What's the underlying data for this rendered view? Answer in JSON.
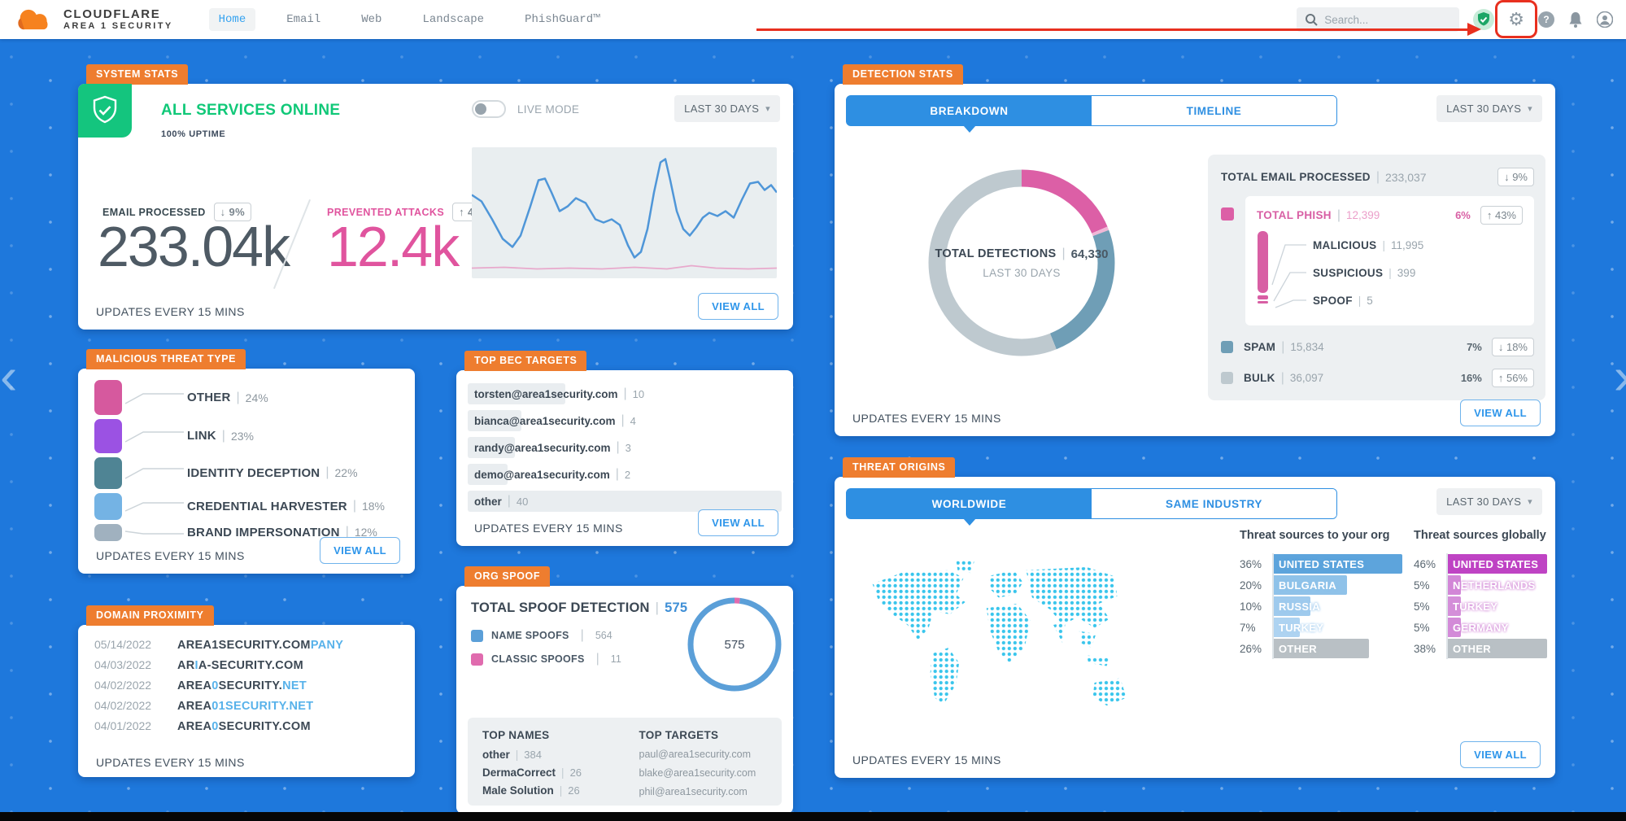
{
  "colors": {
    "background_blue": "#1e78dc",
    "tag_orange": "#ee7d2f",
    "accent_blue": "#2e8fe2",
    "status_green": "#10c878",
    "pink": "#dc5fa6",
    "steel_blue": "#6f9eb6",
    "annotation_red": "#e8301f",
    "map_dot_cyan": "#38c5ec",
    "domain_highlight": "#58b2ea"
  },
  "glyphs": {
    "chevron_down": "▾",
    "gear": "⚙",
    "question_mark": "?",
    "page_prev": "‹",
    "page_next": "›"
  },
  "header": {
    "brand": "CLOUDFLARE",
    "brand_sub": "AREA 1 SECURITY",
    "nav": [
      {
        "label": "Home",
        "active": true
      },
      {
        "label": "Email",
        "active": false
      },
      {
        "label": "Web",
        "active": false
      },
      {
        "label": "Landscape",
        "active": false
      },
      {
        "label": "PhishGuard™",
        "active": false
      }
    ],
    "search_placeholder": "Search..."
  },
  "system_stats": {
    "tag": "SYSTEM STATS",
    "status": "ALL SERVICES ONLINE",
    "uptime": "100% UPTIME",
    "live_mode_label": "LIVE MODE",
    "range": "LAST 30 DAYS",
    "email_processed": {
      "label": "EMAIL PROCESSED",
      "delta": "↓ 9%",
      "value": "233.04k"
    },
    "prevented_attacks": {
      "label": "PREVENTED ATTACKS",
      "delta": "↑ 43%",
      "value": "12.4k"
    },
    "updates": "UPDATES EVERY 15 MINS",
    "view_all": "VIEW ALL"
  },
  "malicious_threat_type": {
    "tag": "MALICIOUS THREAT TYPE",
    "items": [
      {
        "label": "OTHER",
        "pct": "24%",
        "value": 24,
        "color": "#d6599e"
      },
      {
        "label": "LINK",
        "pct": "23%",
        "value": 23,
        "color": "#9b52e3"
      },
      {
        "label": "IDENTITY DECEPTION",
        "pct": "22%",
        "value": 22,
        "color": "#4f8494"
      },
      {
        "label": "CREDENTIAL HARVESTER",
        "pct": "18%",
        "value": 18,
        "color": "#74b3e4"
      },
      {
        "label": "BRAND IMPERSONATION",
        "pct": "12%",
        "value": 12,
        "color": "#a0b1bf"
      }
    ],
    "updates": "UPDATES EVERY 15 MINS",
    "view_all": "VIEW ALL"
  },
  "domain_proximity": {
    "tag": "DOMAIN PROXIMITY",
    "rows": [
      {
        "date": "05/14/2022",
        "parts": [
          [
            "AREA1SECURITY.COM",
            0
          ],
          [
            "PANY",
            1
          ]
        ]
      },
      {
        "date": "04/03/2022",
        "parts": [
          [
            "AR",
            0
          ],
          [
            "I",
            1
          ],
          [
            "A-SECURITY.COM",
            0
          ]
        ]
      },
      {
        "date": "04/02/2022",
        "parts": [
          [
            "AREA",
            0
          ],
          [
            "0",
            1
          ],
          [
            "SECURITY.",
            0
          ],
          [
            "NET",
            1
          ]
        ]
      },
      {
        "date": "04/02/2022",
        "parts": [
          [
            "AREA",
            0
          ],
          [
            "01SECURITY.NET",
            1
          ]
        ]
      },
      {
        "date": "04/01/2022",
        "parts": [
          [
            "AREA",
            0
          ],
          [
            "0",
            1
          ],
          [
            "SECURITY.COM",
            0
          ]
        ]
      }
    ],
    "updates": "UPDATES EVERY 15 MINS"
  },
  "top_bec_targets": {
    "tag": "TOP BEC TARGETS",
    "rows": [
      {
        "email": "torsten@area1security.com",
        "count": "10",
        "value": 10
      },
      {
        "email": "bianca@area1security.com",
        "count": "4",
        "value": 4
      },
      {
        "email": "randy@area1security.com",
        "count": "3",
        "value": 3
      },
      {
        "email": "demo@area1security.com",
        "count": "2",
        "value": 2
      },
      {
        "email": "other",
        "count": "40",
        "value": 40
      }
    ],
    "updates": "UPDATES EVERY 15 MINS",
    "view_all": "VIEW ALL"
  },
  "org_spoof": {
    "tag": "ORG SPOOF",
    "title": "TOTAL SPOOF DETECTION",
    "total": "575",
    "legend": [
      {
        "label": "NAME SPOOFS",
        "count": "564",
        "value": 564,
        "color": "#5b9fd8"
      },
      {
        "label": "CLASSIC SPOOFS",
        "count": "11",
        "value": 11,
        "color": "#e06bae"
      }
    ],
    "donut_center": "575",
    "top_names": {
      "title": "TOP NAMES",
      "rows": [
        {
          "name": "other",
          "count": "384"
        },
        {
          "name": "DermaCorrect",
          "count": "26"
        },
        {
          "name": "Male Solution",
          "count": "26"
        }
      ]
    },
    "top_targets": {
      "title": "TOP TARGETS",
      "rows": [
        "paul@area1security.com",
        "blake@area1security.com",
        "phil@area1security.com"
      ]
    }
  },
  "detection_stats": {
    "tag": "DETECTION STATS",
    "tabs": [
      {
        "label": "BREAKDOWN",
        "active": true
      },
      {
        "label": "TIMELINE",
        "active": false
      }
    ],
    "range": "LAST 30 DAYS",
    "donut": {
      "center_label": "TOTAL DETECTIONS",
      "center_value": "64,330",
      "center_sub": "LAST 30 DAYS",
      "segments": [
        {
          "name": "PHISH",
          "value": 11995,
          "color": "#dc5fa6"
        },
        {
          "name": "PHISH-SLIVER",
          "value": 404,
          "color": "#f0b7d6"
        },
        {
          "name": "SPAM",
          "value": 15834,
          "color": "#6f9eb6"
        },
        {
          "name": "BULK",
          "value": 36097,
          "color": "#bec9cf"
        }
      ]
    },
    "panel": {
      "total_email": {
        "label": "TOTAL EMAIL PROCESSED",
        "value": "233,037",
        "delta": "↓ 9%"
      },
      "phish": {
        "label": "TOTAL PHISH",
        "value": "12,399",
        "pct": "6%",
        "delta": "↑ 43%",
        "color": "#dc5fa6",
        "children": [
          {
            "label": "MALICIOUS",
            "value": "11,995"
          },
          {
            "label": "SUSPICIOUS",
            "value": "399"
          },
          {
            "label": "SPOOF",
            "value": "5"
          }
        ]
      },
      "spam": {
        "label": "SPAM",
        "value": "15,834",
        "pct": "7%",
        "delta": "↓ 18%",
        "color": "#6f9eb6"
      },
      "bulk": {
        "label": "BULK",
        "value": "36,097",
        "pct": "16%",
        "delta": "↑ 56%",
        "color": "#bec9cf"
      }
    },
    "updates": "UPDATES EVERY 15 MINS",
    "view_all": "VIEW ALL"
  },
  "threat_origins": {
    "tag": "THREAT ORIGINS",
    "tabs": [
      {
        "label": "WORLDWIDE",
        "active": true
      },
      {
        "label": "SAME INDUSTRY",
        "active": false
      }
    ],
    "range": "LAST 30 DAYS",
    "org_table": {
      "title": "Threat sources to your org",
      "rows": [
        {
          "pct": "36%",
          "value": 36,
          "country": "UNITED STATES",
          "color": "#5da4dc"
        },
        {
          "pct": "20%",
          "value": 20,
          "country": "BULGARIA",
          "color": "#8fc2e9"
        },
        {
          "pct": "10%",
          "value": 10,
          "country": "RUSSIA",
          "color": "#9fcaed"
        },
        {
          "pct": "7%",
          "value": 7,
          "country": "TURKEY",
          "color": "#aed3f1"
        },
        {
          "pct": "26%",
          "value": 26,
          "country": "OTHER",
          "color": "#b9c0c5"
        }
      ]
    },
    "global_table": {
      "title": "Threat sources globally",
      "rows": [
        {
          "pct": "46%",
          "value": 46,
          "country": "UNITED STATES",
          "color": "#bf44c4"
        },
        {
          "pct": "5%",
          "value": 5,
          "country": "NETHERLANDS",
          "color": "#d287d7"
        },
        {
          "pct": "5%",
          "value": 5,
          "country": "TURKEY",
          "color": "#d48fd9"
        },
        {
          "pct": "5%",
          "value": 5,
          "country": "GERMANY",
          "color": "#d38bd8"
        },
        {
          "pct": "38%",
          "value": 38,
          "country": "OTHER",
          "color": "#b9c0c5"
        }
      ]
    },
    "updates": "UPDATES EVERY 15 MINS",
    "view_all": "VIEW ALL"
  }
}
